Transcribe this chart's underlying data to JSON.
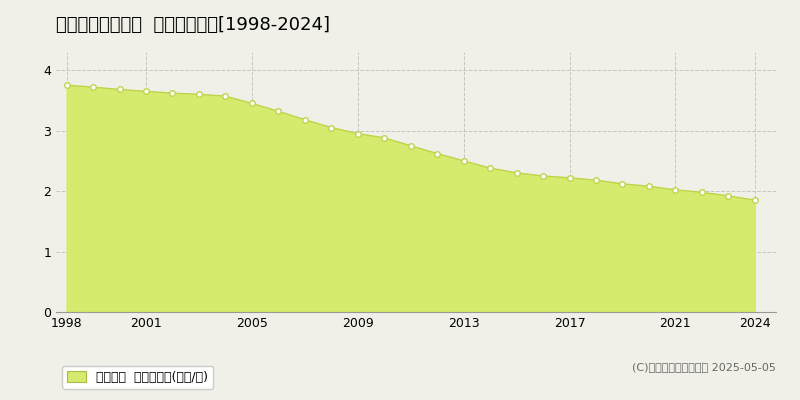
{
  "title": "上川郡比布町中町  基準地価推移[1998-2024]",
  "years": [
    1998,
    1999,
    2000,
    2001,
    2002,
    2003,
    2004,
    2005,
    2006,
    2007,
    2008,
    2009,
    2010,
    2011,
    2012,
    2013,
    2014,
    2015,
    2016,
    2017,
    2018,
    2019,
    2020,
    2021,
    2022,
    2023,
    2024
  ],
  "values": [
    3.75,
    3.72,
    3.68,
    3.65,
    3.62,
    3.6,
    3.57,
    3.45,
    3.32,
    3.18,
    3.05,
    2.95,
    2.88,
    2.75,
    2.62,
    2.5,
    2.38,
    2.3,
    2.25,
    2.22,
    2.18,
    2.12,
    2.08,
    2.02,
    1.98,
    1.92,
    1.85
  ],
  "fill_color": "#d4eb6e",
  "line_color": "#c0d44a",
  "marker_facecolor": "#ffffff",
  "marker_edgecolor": "#c0d44a",
  "background_color": "#f0f0e8",
  "grid_color": "#bbbbbb",
  "yticks": [
    0,
    1,
    2,
    3,
    4
  ],
  "xticks": [
    1998,
    2001,
    2005,
    2009,
    2013,
    2017,
    2021,
    2024
  ],
  "ylim": [
    0,
    4.3
  ],
  "xlim": [
    1997.6,
    2024.8
  ],
  "legend_label": "基準地価  平均坪単価(万円/坪)",
  "copyright": "(C)土地価格ドットコム 2025-05-05",
  "title_fontsize": 13,
  "legend_fontsize": 9,
  "tick_fontsize": 9,
  "copyright_fontsize": 8
}
